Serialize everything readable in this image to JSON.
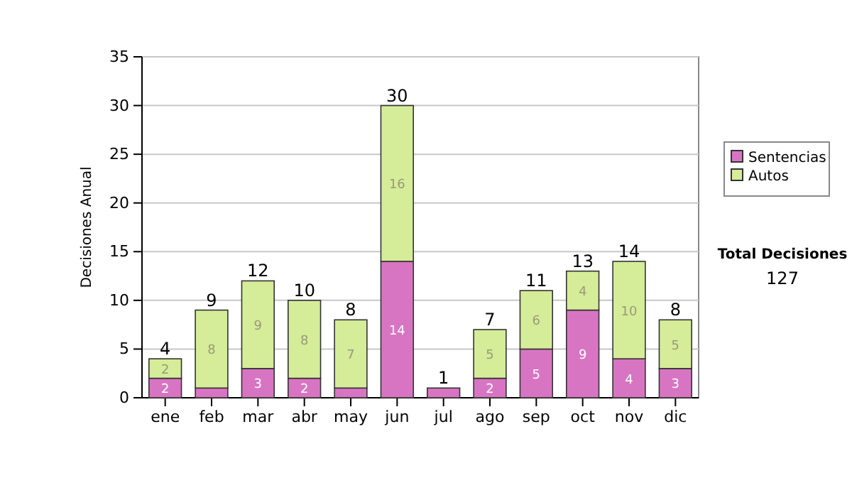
{
  "chart_data": {
    "type": "bar",
    "stacked": true,
    "ylabel": "Decisiones Anual",
    "categories": [
      "ene",
      "feb",
      "mar",
      "abr",
      "may",
      "jun",
      "jul",
      "ago",
      "sep",
      "oct",
      "nov",
      "dic"
    ],
    "series": [
      {
        "name": "Sentencias",
        "color": "#d875c3",
        "values": [
          2,
          1,
          3,
          2,
          1,
          14,
          1,
          2,
          5,
          9,
          4,
          3
        ],
        "value_labels": [
          "2",
          null,
          "3",
          "2",
          null,
          "14",
          null,
          "2",
          "5",
          "9",
          "4",
          "3"
        ]
      },
      {
        "name": "Autos",
        "color": "#d5ec99",
        "values": [
          2,
          8,
          9,
          8,
          7,
          16,
          0,
          5,
          6,
          4,
          10,
          5
        ],
        "value_labels": [
          "2",
          "8",
          "9",
          "8",
          "7",
          "16",
          null,
          "5",
          "6",
          "4",
          "10",
          "5"
        ]
      }
    ],
    "totals": [
      "4",
      "9",
      "12",
      "10",
      "8",
      "30",
      "1",
      "7",
      "11",
      "13",
      "14",
      "8"
    ],
    "ylim": [
      0,
      35
    ],
    "yticks": [
      0,
      5,
      10,
      15,
      20,
      25,
      30,
      35
    ],
    "grid": "y",
    "legend": "right",
    "annotations": [
      "Total Decisiones",
      "127"
    ]
  }
}
